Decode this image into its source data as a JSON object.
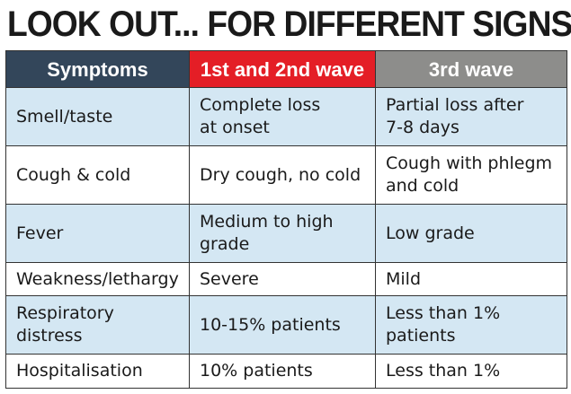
{
  "headline": "LOOK OUT... FOR DIFFERENT SIGNS",
  "colors": {
    "header_symptoms": "#33465a",
    "header_wave12": "#e41e26",
    "header_wave3": "#8d8d8b",
    "row_shade": "#d4e7f3"
  },
  "table": {
    "headers": [
      "Symptoms",
      "1st and 2nd wave",
      "3rd wave"
    ],
    "rows": [
      {
        "symptom": "Smell/taste",
        "wave12": "Complete loss\nat onset",
        "wave3": "Partial loss after\n7-8 days"
      },
      {
        "symptom": "Cough & cold",
        "wave12": "Dry cough, no cold",
        "wave3": "Cough with phlegm\nand cold"
      },
      {
        "symptom": "Fever",
        "wave12": "Medium to high\ngrade",
        "wave3": "Low grade"
      },
      {
        "symptom": "Weakness/lethargy",
        "wave12": "Severe",
        "wave3": "Mild"
      },
      {
        "symptom": "Respiratory\ndistress",
        "wave12": "10-15% patients",
        "wave3": "Less than 1%\npatients"
      },
      {
        "symptom": "Hospitalisation",
        "wave12": "10% patients",
        "wave3": "Less than 1%"
      }
    ]
  }
}
